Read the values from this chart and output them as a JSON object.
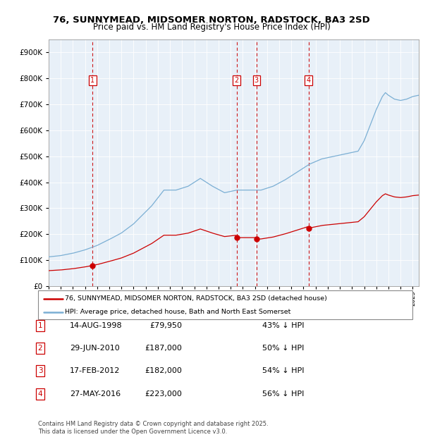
{
  "title": "76, SUNNYMEAD, MIDSOMER NORTON, RADSTOCK, BA3 2SD",
  "subtitle": "Price paid vs. HM Land Registry's House Price Index (HPI)",
  "legend_red": "76, SUNNYMEAD, MIDSOMER NORTON, RADSTOCK, BA3 2SD (detached house)",
  "legend_blue": "HPI: Average price, detached house, Bath and North East Somerset",
  "footer": "Contains HM Land Registry data © Crown copyright and database right 2025.\nThis data is licensed under the Open Government Licence v3.0.",
  "transactions": [
    {
      "label": "1",
      "date": "14-AUG-1998",
      "price": 79950,
      "pct": "43%",
      "x_year": 1998.62
    },
    {
      "label": "2",
      "date": "29-JUN-2010",
      "price": 187000,
      "pct": "50%",
      "x_year": 2010.49
    },
    {
      "label": "3",
      "date": "17-FEB-2012",
      "price": 182000,
      "pct": "54%",
      "x_year": 2012.13
    },
    {
      "label": "4",
      "date": "27-MAY-2016",
      "price": 223000,
      "pct": "56%",
      "x_year": 2016.41
    }
  ],
  "hpi_line_color": "#7bafd4",
  "price_line_color": "#cc0000",
  "marker_box_color": "#cc0000",
  "dashed_line_color": "#cc0000",
  "plot_bg_color": "#e8f0f8",
  "ylim": [
    0,
    950000
  ],
  "xlim_start": 1995.0,
  "xlim_end": 2025.5,
  "yticks": [
    0,
    100000,
    200000,
    300000,
    400000,
    500000,
    600000,
    700000,
    800000,
    900000
  ],
  "xticks": [
    1995,
    1996,
    1997,
    1998,
    1999,
    2000,
    2001,
    2002,
    2003,
    2004,
    2005,
    2006,
    2007,
    2008,
    2009,
    2010,
    2011,
    2012,
    2013,
    2014,
    2015,
    2016,
    2017,
    2018,
    2019,
    2020,
    2021,
    2022,
    2023,
    2024,
    2025
  ]
}
